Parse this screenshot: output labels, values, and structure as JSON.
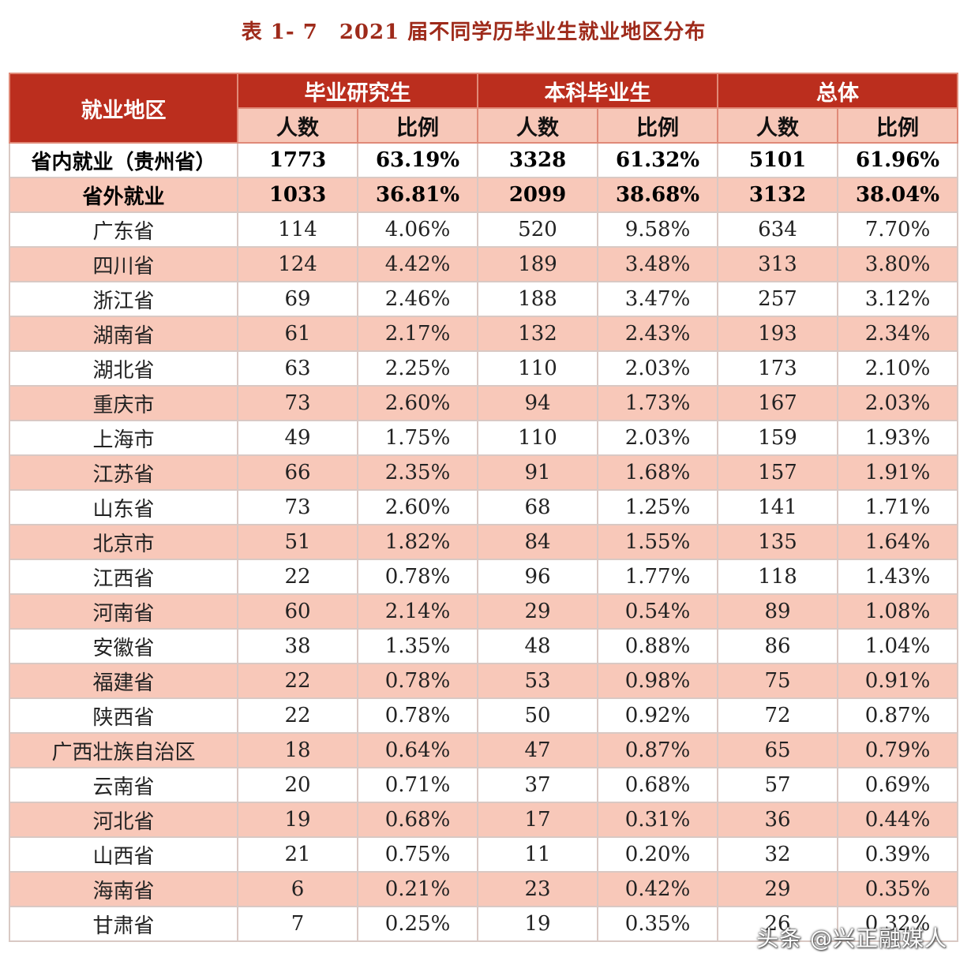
{
  "title": "表 1- 7　2021 届不同学历毕业生就业地区分布",
  "header": {
    "region": "就业地区",
    "groups": [
      "毕业研究生",
      "本科毕业生",
      "总体"
    ],
    "sub": [
      "人数",
      "比例"
    ]
  },
  "rows": [
    {
      "region": "省内就业（贵州省）",
      "v": [
        "1773",
        "63.19%",
        "3328",
        "61.32%",
        "5101",
        "61.96%"
      ]
    },
    {
      "region": "省外就业",
      "v": [
        "1033",
        "36.81%",
        "2099",
        "38.68%",
        "3132",
        "38.04%"
      ]
    },
    {
      "region": "广东省",
      "v": [
        "114",
        "4.06%",
        "520",
        "9.58%",
        "634",
        "7.70%"
      ]
    },
    {
      "region": "四川省",
      "v": [
        "124",
        "4.42%",
        "189",
        "3.48%",
        "313",
        "3.80%"
      ]
    },
    {
      "region": "浙江省",
      "v": [
        "69",
        "2.46%",
        "188",
        "3.47%",
        "257",
        "3.12%"
      ]
    },
    {
      "region": "湖南省",
      "v": [
        "61",
        "2.17%",
        "132",
        "2.43%",
        "193",
        "2.34%"
      ]
    },
    {
      "region": "湖北省",
      "v": [
        "63",
        "2.25%",
        "110",
        "2.03%",
        "173",
        "2.10%"
      ]
    },
    {
      "region": "重庆市",
      "v": [
        "73",
        "2.60%",
        "94",
        "1.73%",
        "167",
        "2.03%"
      ]
    },
    {
      "region": "上海市",
      "v": [
        "49",
        "1.75%",
        "110",
        "2.03%",
        "159",
        "1.93%"
      ]
    },
    {
      "region": "江苏省",
      "v": [
        "66",
        "2.35%",
        "91",
        "1.68%",
        "157",
        "1.91%"
      ]
    },
    {
      "region": "山东省",
      "v": [
        "73",
        "2.60%",
        "68",
        "1.25%",
        "141",
        "1.71%"
      ]
    },
    {
      "region": "北京市",
      "v": [
        "51",
        "1.82%",
        "84",
        "1.55%",
        "135",
        "1.64%"
      ]
    },
    {
      "region": "江西省",
      "v": [
        "22",
        "0.78%",
        "96",
        "1.77%",
        "118",
        "1.43%"
      ]
    },
    {
      "region": "河南省",
      "v": [
        "60",
        "2.14%",
        "29",
        "0.54%",
        "89",
        "1.08%"
      ]
    },
    {
      "region": "安徽省",
      "v": [
        "38",
        "1.35%",
        "48",
        "0.88%",
        "86",
        "1.04%"
      ]
    },
    {
      "region": "福建省",
      "v": [
        "22",
        "0.78%",
        "53",
        "0.98%",
        "75",
        "0.91%"
      ]
    },
    {
      "region": "陕西省",
      "v": [
        "22",
        "0.78%",
        "50",
        "0.92%",
        "72",
        "0.87%"
      ]
    },
    {
      "region": "广西壮族自治区",
      "v": [
        "18",
        "0.64%",
        "47",
        "0.87%",
        "65",
        "0.79%"
      ]
    },
    {
      "region": "云南省",
      "v": [
        "20",
        "0.71%",
        "37",
        "0.68%",
        "57",
        "0.69%"
      ]
    },
    {
      "region": "河北省",
      "v": [
        "19",
        "0.68%",
        "17",
        "0.31%",
        "36",
        "0.44%"
      ]
    },
    {
      "region": "山西省",
      "v": [
        "21",
        "0.75%",
        "11",
        "0.20%",
        "32",
        "0.39%"
      ]
    },
    {
      "region": "海南省",
      "v": [
        "6",
        "0.21%",
        "23",
        "0.42%",
        "29",
        "0.35%"
      ]
    },
    {
      "region": "甘肃省",
      "v": [
        "7",
        "0.25%",
        "19",
        "0.35%",
        "26",
        "0.32%"
      ]
    }
  ],
  "watermark": "头条 @兴正融媒人"
}
